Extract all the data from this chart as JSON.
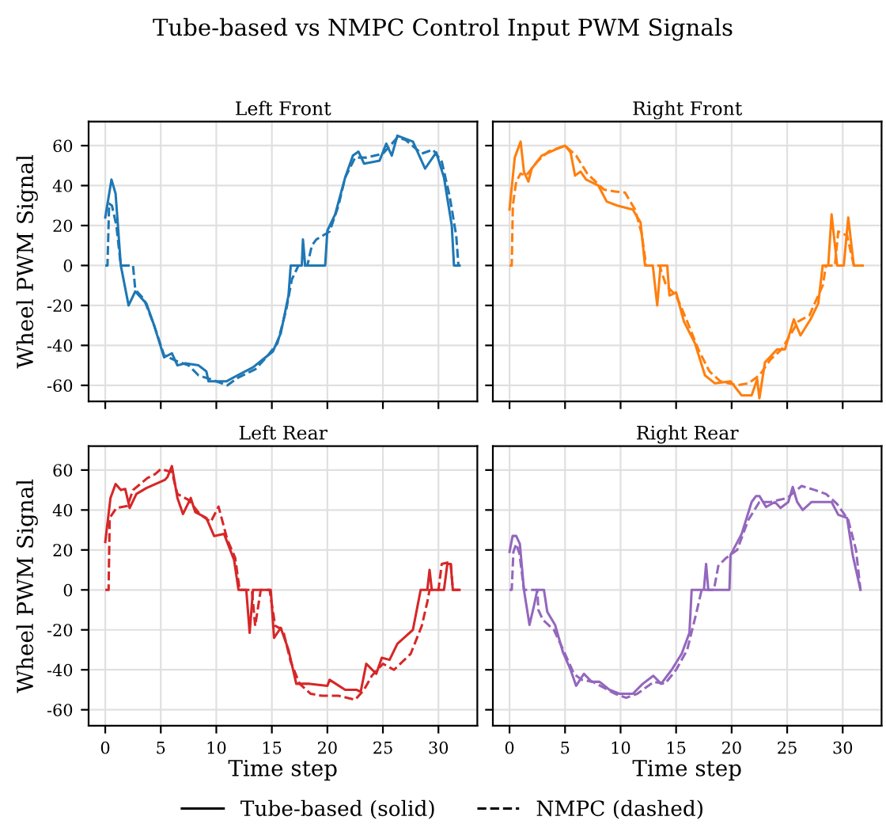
{
  "chart_data": [
    {
      "type": "line",
      "title": "Left Front",
      "ylabel": "Wheel PWM Signal",
      "xlim": [
        -1.5,
        33.5
      ],
      "ylim": [
        -68,
        72
      ],
      "xticks": [
        0,
        5,
        10,
        15,
        20,
        25,
        30
      ],
      "yticks": [
        -60,
        -40,
        -20,
        0,
        20,
        40,
        60
      ],
      "grid": true,
      "tick_labels": "y",
      "annotations": [
        "Tube-based vs NMPC Control Input PWM Signals"
      ],
      "series": [
        {
          "color": "#1f77b4",
          "line_style": "solid",
          "x": [
            0,
            0.56,
            0.93,
            1.4,
            2.1,
            2.7,
            3.7,
            4.4,
            5.3,
            6.0,
            6.5,
            7.2,
            8.4,
            9.1,
            9.3,
            10.9,
            11.9,
            13.3,
            14.2,
            15.1,
            15.8,
            16.5,
            16.7,
            17.7,
            17.8,
            18.0,
            19.8,
            20.0,
            20.7,
            21.6,
            22.3,
            22.8,
            23.3,
            24.7,
            25.3,
            25.8,
            26.3,
            27.7,
            28.8,
            29.8,
            30.5,
            31.2,
            31.4,
            31.9
          ],
          "values": [
            24,
            43,
            36,
            0,
            -20,
            -13,
            -19,
            -30,
            -46,
            -44,
            -50,
            -49,
            -50,
            -53,
            -58,
            -58,
            -55,
            -51,
            -47,
            -43,
            -34,
            -15,
            0,
            0,
            13,
            0,
            0,
            17.5,
            25.6,
            44,
            55,
            57,
            51,
            52.5,
            61,
            55,
            65,
            62,
            48.5,
            56.6,
            44,
            20,
            0,
            0
          ]
        },
        {
          "color": "#1f77b4",
          "line_style": "dashed",
          "x": [
            0,
            0.2,
            0.35,
            0.6,
            1.0,
            1.4,
            2.5,
            2.7,
            3.5,
            4.4,
            5.3,
            6.5,
            7.5,
            8.4,
            9.5,
            10.5,
            11.0,
            12,
            13.5,
            14.5,
            15.5,
            16.3,
            16.8,
            17.4,
            18.2,
            18.6,
            19,
            20.2,
            21,
            21.6,
            22.5,
            23.5,
            25,
            26.3,
            27,
            28.5,
            29.5,
            30.3,
            31,
            31.6,
            31.8
          ],
          "values": [
            0,
            0,
            31,
            30,
            20,
            0,
            0,
            -12,
            -17,
            -30,
            -45,
            -48,
            -50,
            -55,
            -57,
            -59,
            -60,
            -56,
            -52,
            -46,
            -39,
            -22,
            -7,
            0,
            0,
            10,
            13,
            17,
            30,
            44,
            54,
            54,
            56,
            64,
            63,
            56,
            58,
            52,
            35,
            15,
            0
          ]
        }
      ]
    },
    {
      "type": "line",
      "title": "Right Front",
      "xlim": [
        -1.5,
        33.5
      ],
      "ylim": [
        -68,
        72
      ],
      "xticks": [
        0,
        5,
        10,
        15,
        20,
        25,
        30
      ],
      "yticks": [
        -60,
        -40,
        -20,
        0,
        20,
        40,
        60
      ],
      "grid": true,
      "tick_labels": false,
      "series": [
        {
          "color": "#ff7f0e",
          "line_style": "solid",
          "x": [
            0,
            0.47,
            1.0,
            1.3,
            1.7,
            2.0,
            2.9,
            4.1,
            5.0,
            5.5,
            5.9,
            6.4,
            6.9,
            8.0,
            8.75,
            9.7,
            11.1,
            11.8,
            12.2,
            12.9,
            13.3,
            13.6,
            14.2,
            14.4,
            15.0,
            15.7,
            16.7,
            17.6,
            18.5,
            19.9,
            20.9,
            21.8,
            22.3,
            22.5,
            23.0,
            24.1,
            24.8,
            25.6,
            26.2,
            27.1,
            27.8,
            28.2,
            28.7,
            29.0,
            29.5,
            30.1,
            30.5,
            31.0,
            31.8
          ],
          "values": [
            28,
            54,
            62,
            47,
            42,
            48.5,
            55,
            58,
            60,
            56.6,
            45,
            47,
            43,
            40,
            32,
            30,
            28,
            21.5,
            0,
            0,
            -20,
            0,
            0,
            -15,
            -13.5,
            -28,
            -39,
            -55,
            -59,
            -58,
            -65,
            -65,
            -57,
            -66.5,
            -48.5,
            -42,
            -42,
            -27,
            -35,
            -27,
            -19,
            0,
            0,
            25.6,
            0,
            0,
            24,
            0,
            0
          ]
        },
        {
          "color": "#ff7f0e",
          "line_style": "dashed",
          "x": [
            0,
            0.2,
            0.3,
            0.6,
            1.0,
            1.5,
            2.5,
            3.5,
            5.0,
            6.0,
            7.0,
            8.5,
            9.5,
            10.4,
            11.3,
            11.9,
            12.3,
            13.5,
            14.1,
            15,
            16,
            17,
            18,
            19,
            20.5,
            21.5,
            22.5,
            23.5,
            24.5,
            26,
            27,
            28.2,
            28.5,
            29.3,
            29.6,
            30.4,
            31,
            31.8
          ],
          "values": [
            0,
            0,
            30,
            42,
            46,
            45,
            52,
            57,
            60,
            55,
            46,
            38,
            37,
            36.5,
            28,
            16,
            0,
            0,
            -10,
            -15,
            -28,
            -42,
            -53,
            -58,
            -60,
            -59,
            -55,
            -47,
            -42,
            -28,
            -25,
            -10,
            0,
            0,
            17,
            15,
            0,
            0
          ]
        }
      ]
    },
    {
      "type": "line",
      "title": "Left Rear",
      "xlabel": "Time step",
      "ylabel": "Wheel PWM Signal",
      "xlim": [
        -1.5,
        33.5
      ],
      "ylim": [
        -68,
        72
      ],
      "xticks": [
        0,
        5,
        10,
        15,
        20,
        25,
        30
      ],
      "yticks": [
        -60,
        -40,
        -20,
        0,
        20,
        40,
        60
      ],
      "grid": true,
      "series": [
        {
          "color": "#d62728",
          "line_style": "solid",
          "x": [
            0,
            0.47,
            0.93,
            1.4,
            1.8,
            2.2,
            2.8,
            3.7,
            5.35,
            5.6,
            6.0,
            6.5,
            7.0,
            7.7,
            8.1,
            9.1,
            9.8,
            10.7,
            11.6,
            12.0,
            12.7,
            13.0,
            13.3,
            14.9,
            15.2,
            15.8,
            16.5,
            17.2,
            18.4,
            20.0,
            20.2,
            21.6,
            22.6,
            23.0,
            23.5,
            24.4,
            24.9,
            25.6,
            26.3,
            27.7,
            28.4,
            29.0,
            29.2,
            29.4,
            30.5,
            30.8,
            31.1,
            31.3,
            31.9
          ],
          "values": [
            24,
            46,
            53,
            50,
            50.5,
            41,
            48,
            51,
            55,
            56.5,
            62,
            46,
            38,
            46,
            39,
            36,
            27,
            28,
            15,
            0,
            0,
            -21.5,
            0,
            0,
            -24,
            -19,
            -30,
            -47,
            -47,
            -48,
            -45,
            -50,
            -50,
            -51,
            -37,
            -42,
            -34,
            -35,
            -27,
            -20,
            0,
            0,
            10,
            0,
            0,
            13,
            13,
            0,
            0
          ]
        },
        {
          "color": "#d62728",
          "line_style": "dashed",
          "x": [
            0,
            0.3,
            0.4,
            1.0,
            2.0,
            2.5,
            3.8,
            4.5,
            5.0,
            6.0,
            6.5,
            7.5,
            8.5,
            9.5,
            10.2,
            11.0,
            11.7,
            12.1,
            13.2,
            13.5,
            14.0,
            14.8,
            15.3,
            16,
            16.7,
            17.5,
            18.5,
            19.5,
            21.0,
            22.5,
            23.3,
            24,
            25,
            26,
            27.5,
            28.5,
            29,
            29.2,
            30,
            30.3,
            31.1,
            31.3,
            31.9
          ],
          "values": [
            0,
            0,
            36,
            41,
            42,
            50,
            56,
            58,
            60.5,
            59,
            48,
            45,
            38,
            34,
            41.7,
            25,
            16,
            0,
            0,
            -18,
            0,
            0,
            -18,
            -20,
            -36,
            -47,
            -52,
            -53,
            -53,
            -55,
            -50,
            -43,
            -37,
            -40,
            -32,
            -18,
            -6,
            0,
            0,
            13,
            14,
            0,
            0
          ]
        }
      ]
    },
    {
      "type": "line",
      "title": "Right Rear",
      "xlabel": "Time step",
      "xlim": [
        -1.5,
        33.5
      ],
      "ylim": [
        -68,
        72
      ],
      "xticks": [
        0,
        5,
        10,
        15,
        20,
        25,
        30
      ],
      "yticks": [
        -60,
        -40,
        -20,
        0,
        20,
        40,
        60
      ],
      "grid": true,
      "tick_labels": "x",
      "annotations": [
        "Tube-based (solid)",
        "NMPC (dashed)"
      ],
      "series": [
        {
          "color": "#9467bd",
          "line_style": "solid",
          "x": [
            0,
            0.28,
            0.6,
            0.93,
            1.3,
            1.8,
            2.2,
            2.5,
            3.1,
            3.4,
            4.1,
            4.8,
            5.5,
            6.0,
            6.7,
            7.4,
            8.1,
            9.0,
            9.9,
            11.1,
            12.0,
            12.95,
            13.65,
            14.6,
            15.5,
            16.2,
            16.4,
            17.5,
            17.7,
            17.9,
            19.8,
            19.9,
            20.9,
            21.8,
            22.2,
            22.5,
            23.1,
            23.9,
            24.4,
            25.1,
            25.5,
            25.9,
            26.4,
            27.2,
            28.1,
            29.0,
            29.6,
            30.4,
            30.9,
            31.6
          ],
          "values": [
            19,
            27,
            27,
            23,
            0,
            -17.5,
            -8,
            0,
            0,
            -11,
            -17.5,
            -31,
            -40,
            -48,
            -42,
            -46,
            -46,
            -50,
            -52,
            -52,
            -47,
            -43,
            -47,
            -40,
            -32,
            -21.5,
            0,
            0,
            13,
            0,
            0,
            17.5,
            28,
            44,
            47,
            47,
            41.5,
            44,
            41,
            44,
            51.5,
            44,
            40,
            44,
            44,
            44,
            37.6,
            36,
            17.5,
            0
          ]
        },
        {
          "color": "#9467bd",
          "line_style": "dashed",
          "x": [
            0,
            0.2,
            0.35,
            0.6,
            0.9,
            1.3,
            2.5,
            2.6,
            3.0,
            4,
            5,
            5.8,
            6.5,
            7.5,
            8.5,
            9.5,
            10.5,
            11.5,
            13,
            14,
            15,
            16,
            16.8,
            17.3,
            18.4,
            18.8,
            19.5,
            20.5,
            21.5,
            22.5,
            23.5,
            25,
            26.3,
            27.5,
            28.5,
            29.5,
            30.5,
            31.2,
            31.6
          ],
          "values": [
            0,
            0,
            19,
            23,
            18,
            0,
            0,
            -10,
            -15,
            -20,
            -32,
            -42,
            -45,
            -46,
            -49,
            -52,
            -54,
            -52,
            -46,
            -47,
            -40,
            -30,
            -12,
            0,
            0,
            12,
            16,
            20,
            35,
            44,
            44,
            46,
            52,
            50,
            48,
            43,
            35,
            20,
            0
          ]
        }
      ]
    }
  ]
}
